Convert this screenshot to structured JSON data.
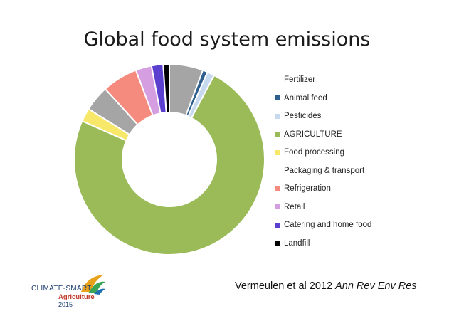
{
  "chart_data": {
    "type": "pie",
    "style": "donut",
    "title": "Global food system emissions",
    "legend_position": "right",
    "slices": [
      {
        "label": "Fertilizer",
        "value": 5.5,
        "color": "#a5a5a5",
        "show_swatch": false
      },
      {
        "label": "Animal feed",
        "value": 0.8,
        "color": "#2e5e8e",
        "show_swatch": true
      },
      {
        "label": "Pesticides",
        "value": 1.2,
        "color": "#c6d9ef",
        "show_swatch": true
      },
      {
        "label": "AGRICULTURE",
        "value": 71,
        "color": "#9bbb59",
        "show_swatch": true
      },
      {
        "label": "Food processing",
        "value": 2.2,
        "color": "#f8e86a",
        "show_swatch": true
      },
      {
        "label": "Packaging & transport",
        "value": 4.2,
        "color": "#a5a5a5",
        "show_swatch": false
      },
      {
        "label": "Refrigeration",
        "value": 5.8,
        "color": "#f58b7e",
        "show_swatch": true
      },
      {
        "label": "Retail",
        "value": 2.6,
        "color": "#d59ee0",
        "show_swatch": true
      },
      {
        "label": "Catering and home food",
        "value": 1.9,
        "color": "#5b3fcf",
        "show_swatch": true
      },
      {
        "label": "Landfill",
        "value": 1.0,
        "color": "#000000",
        "show_swatch": true
      }
    ]
  },
  "citation": {
    "authors": "Vermeulen et al 2012 ",
    "journal": "Ann Rev Env Res"
  },
  "logo": {
    "line1": "CLIMATE-SMART",
    "line2": "Agriculture",
    "line3": "2015"
  }
}
